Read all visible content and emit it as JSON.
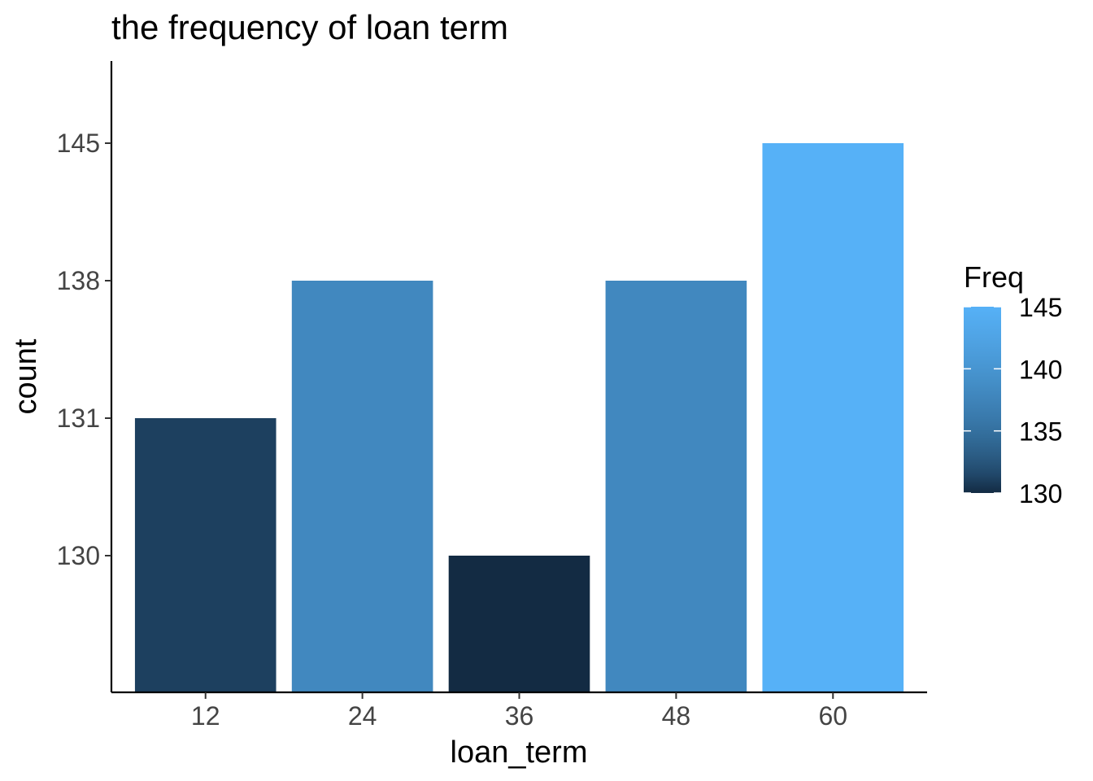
{
  "chart_data": {
    "type": "bar",
    "title": "the frequency of loan term",
    "xlabel": "loan_term",
    "ylabel": "count",
    "categories": [
      "12",
      "24",
      "36",
      "48",
      "60"
    ],
    "values": [
      131,
      138,
      130,
      138,
      145
    ],
    "y_scale": "discrete",
    "y_tick_labels": [
      "130",
      "131",
      "138",
      "145"
    ],
    "grid": false,
    "fill_scale": {
      "name": "Freq",
      "low_color": "#132B43",
      "high_color": "#56B1F7",
      "range": [
        130,
        145
      ],
      "ticks": [
        "130",
        "135",
        "140",
        "145"
      ]
    },
    "legend_position": "right"
  }
}
